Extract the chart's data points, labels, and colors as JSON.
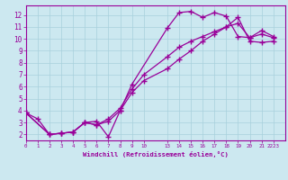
{
  "xlabel": "Windchill (Refroidissement éolien,°C)",
  "bg_color": "#cce8f0",
  "grid_color": "#a8d0dc",
  "line_color": "#990099",
  "x_tick_labels": [
    "1",
    "2",
    "3",
    "4",
    "5",
    "6",
    "7",
    "8",
    "9",
    "10",
    "",
    "13",
    "14",
    "15",
    "16",
    "17",
    "18",
    "19",
    "20",
    "21",
    "2223"
  ],
  "x_tick_pos": [
    1,
    2,
    3,
    4,
    5,
    6,
    7,
    8,
    9,
    10,
    11,
    12,
    13,
    14,
    15,
    16,
    17,
    18,
    19,
    20,
    21
  ],
  "x_tick_display": [
    "1",
    "2",
    "3",
    "4",
    "5",
    "6",
    "7",
    "8",
    "9",
    "10",
    "",
    "13",
    "14",
    "15",
    "16",
    "17",
    "18",
    "19",
    "20",
    "21",
    "2223"
  ],
  "y_ticks": [
    2,
    3,
    4,
    5,
    6,
    7,
    8,
    9,
    10,
    11,
    12
  ],
  "xlim": [
    0,
    22
  ],
  "ylim": [
    1.5,
    12.8
  ],
  "series1_x": [
    0,
    1,
    2,
    3,
    4,
    5,
    6,
    7,
    8,
    9,
    12,
    13,
    14,
    15,
    16,
    17,
    18,
    19,
    20,
    21
  ],
  "series1_y": [
    3.8,
    3.3,
    2.0,
    2.1,
    2.2,
    3.0,
    3.1,
    1.8,
    4.0,
    6.2,
    10.9,
    12.2,
    12.3,
    11.8,
    12.2,
    11.9,
    10.2,
    10.1,
    10.7,
    10.2
  ],
  "series2_x": [
    0,
    2,
    3,
    4,
    5,
    6,
    7,
    8,
    9,
    10,
    12,
    13,
    14,
    15,
    16,
    17,
    18,
    19,
    20,
    21
  ],
  "series2_y": [
    3.8,
    2.0,
    2.1,
    2.2,
    3.0,
    2.8,
    3.1,
    4.0,
    5.5,
    6.5,
    7.5,
    8.3,
    9.0,
    9.8,
    10.4,
    11.0,
    11.8,
    9.8,
    9.7,
    9.8
  ],
  "series3_x": [
    0,
    2,
    3,
    4,
    5,
    6,
    7,
    8,
    9,
    10,
    12,
    13,
    14,
    15,
    16,
    17,
    18,
    19,
    20,
    21
  ],
  "series3_y": [
    3.8,
    2.0,
    2.1,
    2.2,
    3.0,
    2.8,
    3.3,
    4.2,
    5.8,
    7.0,
    8.5,
    9.3,
    9.8,
    10.2,
    10.6,
    11.0,
    11.3,
    10.1,
    10.4,
    10.1
  ],
  "figsize": [
    3.2,
    2.0
  ],
  "dpi": 100
}
